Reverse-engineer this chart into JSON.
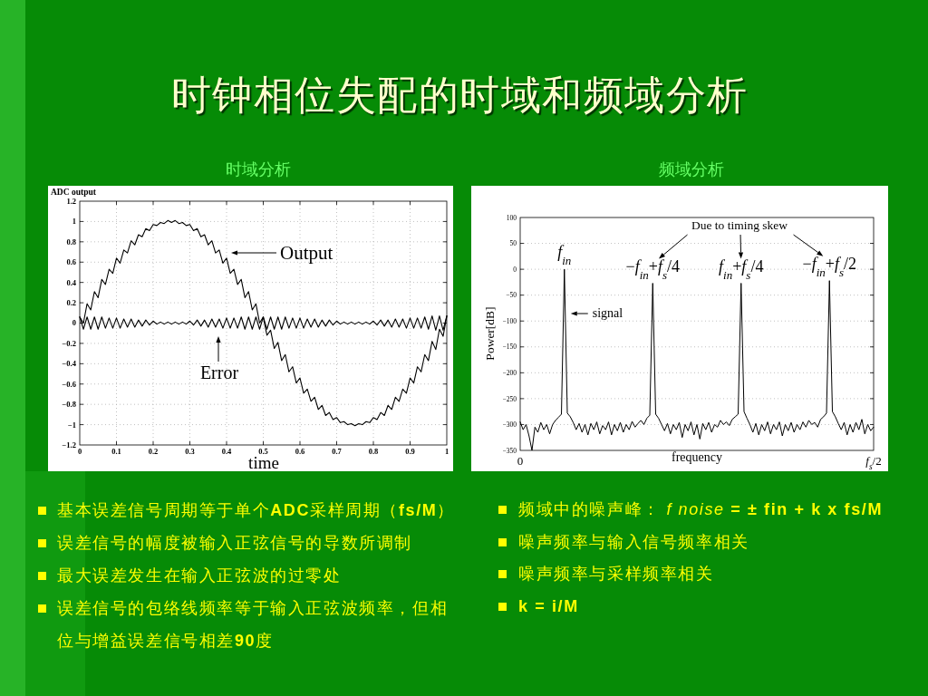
{
  "chart_data": [
    {
      "type": "other",
      "title": "时钟相位失配的时域和频域分析"
    },
    {
      "type": "line",
      "title": "时域分析",
      "xlabel": "time",
      "ylabel": "ADC output",
      "x": [
        0,
        0.01,
        0.02,
        0.03,
        0.04,
        0.05,
        0.06,
        0.07,
        0.08,
        0.09,
        0.1,
        0.11,
        0.12,
        0.13,
        0.14,
        0.15,
        0.16,
        0.17,
        0.18,
        0.19,
        0.2,
        0.21,
        0.22,
        0.23,
        0.24,
        0.25,
        0.26,
        0.27,
        0.28,
        0.29,
        0.3,
        0.31,
        0.32,
        0.33,
        0.34,
        0.35,
        0.36,
        0.37,
        0.38,
        0.39,
        0.4,
        0.41,
        0.42,
        0.43,
        0.44,
        0.45,
        0.46,
        0.47,
        0.48,
        0.49,
        0.5,
        0.51,
        0.52,
        0.53,
        0.54,
        0.55,
        0.56,
        0.57,
        0.58,
        0.59,
        0.6,
        0.61,
        0.62,
        0.63,
        0.64,
        0.65,
        0.66,
        0.67,
        0.68,
        0.69,
        0.7,
        0.71,
        0.72,
        0.73,
        0.74,
        0.75,
        0.76,
        0.77,
        0.78,
        0.79,
        0.8,
        0.81,
        0.82,
        0.83,
        0.84,
        0.85,
        0.86,
        0.87,
        0.88,
        0.89,
        0.9,
        0.91,
        0.92,
        0.93,
        0.94,
        0.95,
        0.96,
        0.97,
        0.98,
        0.99,
        1
      ],
      "series": [
        {
          "name": "Output",
          "color": "#000000",
          "values": [
            0.06,
            0.0,
            0.19,
            0.13,
            0.31,
            0.25,
            0.43,
            0.38,
            0.53,
            0.49,
            0.64,
            0.59,
            0.72,
            0.69,
            0.81,
            0.77,
            0.87,
            0.85,
            0.93,
            0.91,
            0.97,
            0.96,
            0.99,
            0.98,
            1.01,
            0.99,
            1.01,
            0.98,
            0.99,
            0.96,
            0.97,
            0.91,
            0.93,
            0.85,
            0.87,
            0.77,
            0.81,
            0.69,
            0.72,
            0.59,
            0.64,
            0.49,
            0.53,
            0.38,
            0.43,
            0.25,
            0.31,
            0.13,
            0.19,
            0.0,
            0.06,
            -0.12,
            -0.07,
            -0.25,
            -0.19,
            -0.37,
            -0.31,
            -0.48,
            -0.43,
            -0.59,
            -0.54,
            -0.69,
            -0.65,
            -0.77,
            -0.73,
            -0.85,
            -0.81,
            -0.91,
            -0.88,
            -0.95,
            -0.93,
            -0.98,
            -0.97,
            -1.0,
            -0.99,
            -1.01,
            -0.99,
            -1.0,
            -0.97,
            -0.98,
            -0.93,
            -0.95,
            -0.88,
            -0.91,
            -0.81,
            -0.85,
            -0.73,
            -0.77,
            -0.65,
            -0.69,
            -0.54,
            -0.59,
            -0.43,
            -0.48,
            -0.31,
            -0.37,
            -0.18,
            -0.26,
            -0.06,
            -0.13,
            0.07
          ]
        },
        {
          "name": "Error",
          "color": "#000000",
          "values": [
            0.06,
            -0.06,
            0.06,
            -0.06,
            0.06,
            -0.06,
            0.06,
            -0.05,
            0.05,
            -0.05,
            0.05,
            -0.05,
            0.04,
            -0.04,
            0.04,
            -0.04,
            0.03,
            -0.03,
            0.03,
            -0.02,
            0.02,
            -0.01,
            0.01,
            -0.01,
            0.01,
            -0.01,
            0.01,
            -0.01,
            0.01,
            -0.01,
            0.02,
            -0.02,
            0.03,
            -0.03,
            0.03,
            -0.04,
            0.04,
            -0.04,
            0.04,
            -0.05,
            0.05,
            -0.05,
            0.05,
            -0.05,
            0.06,
            -0.06,
            0.06,
            -0.06,
            0.06,
            -0.06,
            0.06,
            -0.06,
            0.06,
            -0.06,
            0.06,
            -0.06,
            0.06,
            -0.05,
            0.05,
            -0.05,
            0.05,
            -0.05,
            0.04,
            -0.04,
            0.04,
            -0.04,
            0.03,
            -0.03,
            0.03,
            -0.02,
            0.02,
            -0.01,
            0.01,
            -0.01,
            0.01,
            -0.01,
            0.01,
            -0.01,
            0.01,
            -0.01,
            0.02,
            -0.02,
            0.03,
            -0.03,
            0.03,
            -0.04,
            0.04,
            -0.04,
            0.04,
            -0.05,
            0.05,
            -0.05,
            0.05,
            -0.05,
            0.06,
            -0.06,
            0.07,
            -0.07,
            0.07,
            -0.07,
            0.07
          ]
        }
      ],
      "xlim": [
        0,
        1
      ],
      "ylim": [
        -1.2,
        1.2
      ],
      "xticks": [
        0,
        0.1,
        0.2,
        0.3,
        0.4,
        0.5,
        0.6,
        0.7,
        0.8,
        0.9,
        1
      ],
      "yticks": [
        -1.2,
        -1,
        -0.8,
        -0.6,
        -0.4,
        -0.2,
        0,
        0.2,
        0.4,
        0.6,
        0.8,
        1,
        1.2
      ],
      "grid": true
    },
    {
      "type": "line",
      "title": "频域分析",
      "xlabel": "frequency",
      "ylabel": "Power[dB]",
      "categories": [
        null,
        null,
        null,
        null,
        null,
        null,
        null,
        null,
        null,
        null,
        null,
        null,
        null,
        null,
        null,
        null,
        null,
        null,
        null,
        null,
        null,
        null,
        null,
        null,
        null,
        null,
        null,
        null,
        null,
        null,
        null,
        null,
        null,
        null,
        null,
        null,
        null,
        null,
        null,
        null,
        null,
        null,
        null,
        null,
        null,
        null,
        null,
        null,
        null,
        null,
        null,
        null,
        null,
        null,
        null,
        null,
        null,
        null,
        null,
        null,
        null,
        null,
        null,
        null,
        null,
        null,
        null,
        null,
        null,
        null,
        null,
        null,
        null,
        null,
        null,
        null,
        null,
        null,
        null,
        null,
        null,
        null,
        null,
        null,
        null,
        null,
        null,
        null,
        null,
        null,
        null,
        null,
        null,
        null,
        null,
        null,
        null,
        null,
        null,
        null,
        null,
        null,
        null,
        null,
        null,
        null,
        null,
        null,
        null,
        null,
        null,
        null,
        null,
        null,
        null,
        null,
        null,
        null,
        null,
        null,
        null
      ],
      "series": [
        {
          "color": "#000000",
          "values": [
            -295,
            -310,
            -300,
            -322,
            -350,
            -305,
            -315,
            -296,
            -310,
            -300,
            -318,
            -300,
            -292,
            -286,
            -280,
            0,
            -278,
            -285,
            -296,
            -310,
            -298,
            -315,
            -300,
            -320,
            -298,
            -310,
            -295,
            -318,
            -302,
            -310,
            -295,
            -320,
            -300,
            -312,
            -296,
            -315,
            -300,
            -310,
            -294,
            -305,
            -298,
            -292,
            -300,
            -288,
            -282,
            -27,
            -280,
            -288,
            -300,
            -312,
            -298,
            -318,
            -300,
            -310,
            -296,
            -325,
            -300,
            -312,
            -295,
            -320,
            -300,
            -328,
            -298,
            -310,
            -296,
            -315,
            -300,
            -305,
            -292,
            -300,
            -295,
            -302,
            -290,
            -285,
            -280,
            -27,
            -275,
            -288,
            -300,
            -315,
            -298,
            -320,
            -300,
            -312,
            -295,
            -318,
            -300,
            -310,
            -295,
            -322,
            -300,
            -312,
            -296,
            -315,
            -300,
            -310,
            -295,
            -305,
            -292,
            -300,
            -296,
            -305,
            -290,
            -285,
            -278,
            -22,
            -275,
            -285,
            -298,
            -310,
            -296,
            -320,
            -300,
            -315,
            -296,
            -310,
            -290,
            -318,
            -300,
            -312,
            -305
          ]
        }
      ],
      "ylim": [
        -350,
        100
      ],
      "yticks": [
        -350,
        -300,
        -250,
        -200,
        -150,
        -100,
        -50,
        0,
        50,
        100
      ],
      "grid": "y",
      "annotations": [
        "Due to timing skew",
        {
          "text": "*f*$_{in}$",
          "y": 0
        },
        {
          "text": "−*f*$_{in}$+*f*$_{s}$/4",
          "y": -27
        },
        {
          "text": "*f*$_{in}$+*f*$_{s}$/4",
          "y": -27
        },
        {
          "text": "−*f*$_{in}$+*f*$_{s}$/2",
          "y": -22
        },
        "signal",
        "0",
        "*f*$_{s}$/2"
      ]
    },
    {
      "type": "other",
      "annotations": [
        "基本误差信号周期等于单个**ADC**采样周期（**fs/M**）",
        "误差信号的幅度被输入正弦信号的导数所调制",
        "最大误差发生在输入正弦波的过零处",
        "误差信号的包络线频率等于输入正弦波频率，但相位与增益误差信号相差**90**度"
      ]
    },
    {
      "type": "other",
      "annotations": [
        "频域中的噪声峰： *f noise* **= ± fin + k x fs/M**",
        "噪声频率与输入信号频率相关",
        "噪声频率与采样频率相关",
        "**k = i/M**"
      ]
    }
  ]
}
